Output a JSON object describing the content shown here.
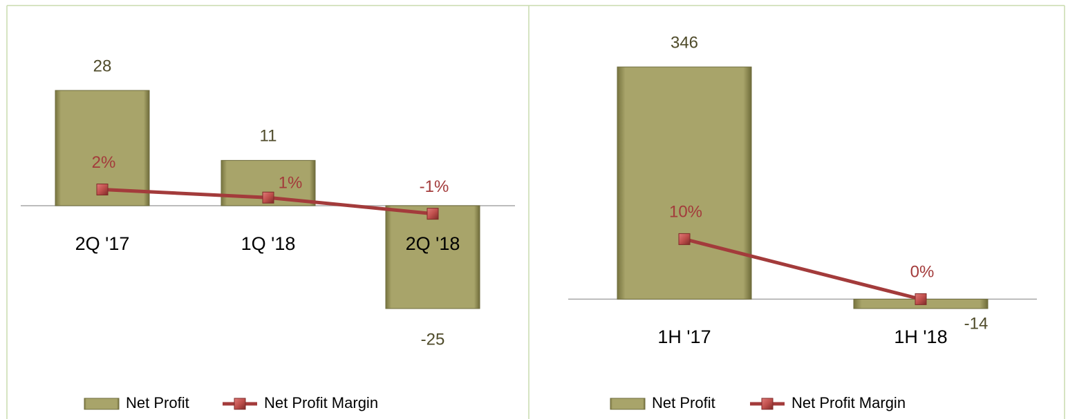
{
  "chart_data": [
    {
      "type": "bar",
      "categories": [
        "2Q '17",
        "1Q '18",
        "2Q '18"
      ],
      "series": [
        {
          "name": "Net Profit",
          "color": "#9c9860",
          "values": [
            28,
            11,
            -25
          ]
        },
        {
          "name": "Net Profit Margin",
          "color": "#a33b3b",
          "type": "line",
          "axis": "y2",
          "values": [
            2,
            1,
            -1
          ],
          "value_labels": [
            "2%",
            "1%",
            "-1%"
          ]
        }
      ]
    },
    {
      "type": "bar",
      "categories": [
        "1H '17",
        "1H '18"
      ],
      "series": [
        {
          "name": "Net Profit",
          "color": "#9c9860",
          "values": [
            346,
            -14
          ]
        },
        {
          "name": "Net Profit Margin",
          "color": "#a33b3b",
          "type": "line",
          "axis": "y2",
          "values": [
            10,
            0
          ],
          "value_labels": [
            "10%",
            "0%"
          ]
        }
      ]
    }
  ]
}
